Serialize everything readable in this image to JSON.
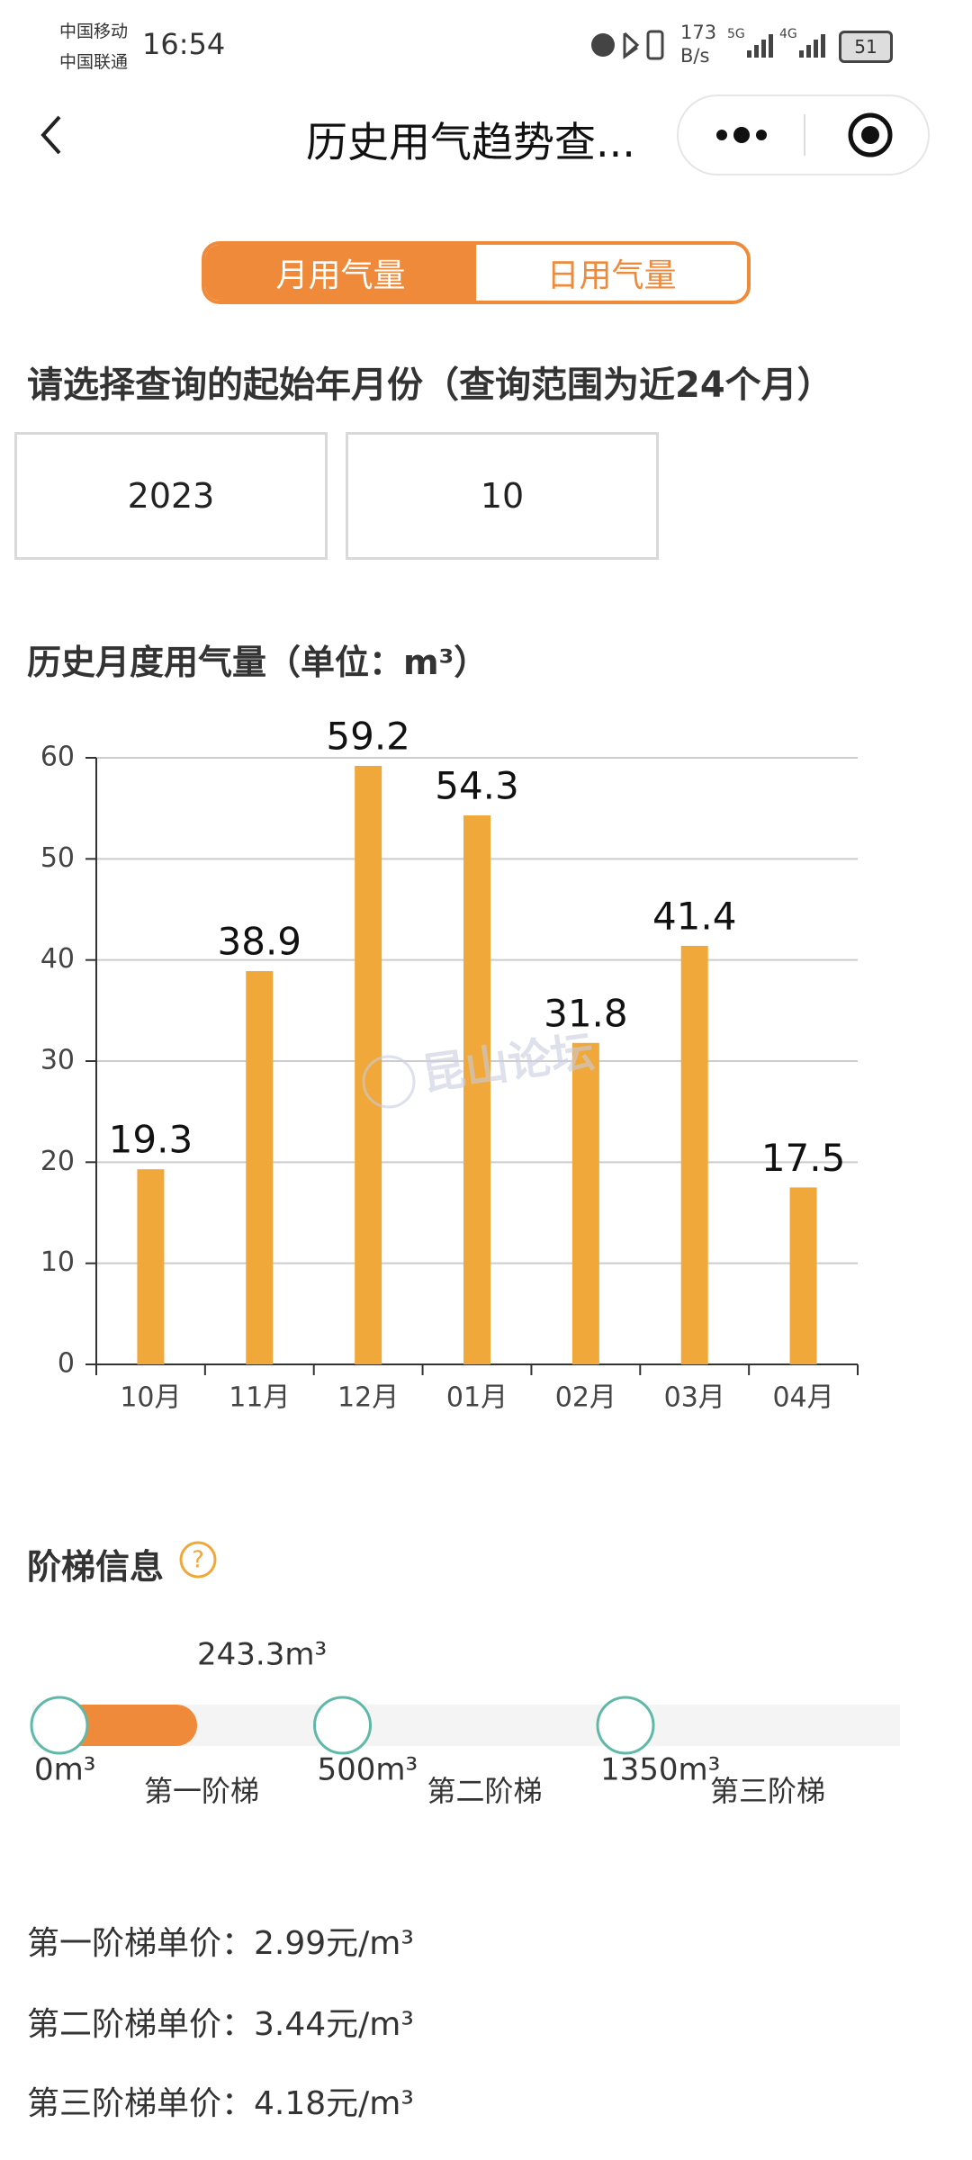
{
  "status_bar": {
    "carrier1": "中国移动",
    "carrier2": "中国联通",
    "time": "16:54",
    "speed": "173",
    "speed_unit": "B/s",
    "signal1": "5G",
    "signal2": "4G",
    "battery": "51"
  },
  "header": {
    "title": "历史用气趋势查..."
  },
  "tabs": [
    "月用气量",
    "日用气量"
  ],
  "query": {
    "label": "请选择查询的起始年月份（查询范围为近24个月）",
    "year": "2023",
    "month": "10"
  },
  "chart_data": {
    "type": "bar",
    "title": "历史月度用气量（单位：m³）",
    "categories": [
      "10月",
      "11月",
      "12月",
      "01月",
      "02月",
      "03月",
      "04月"
    ],
    "values": [
      19.3,
      38.9,
      59.2,
      54.3,
      31.8,
      41.4,
      17.5
    ],
    "color": "#f0a83a",
    "ylim": [
      0,
      60
    ],
    "yticks": [
      0,
      10,
      20,
      30,
      40,
      50,
      60
    ],
    "grid": true
  },
  "watermark": "昆山论坛",
  "tiers": {
    "title": "阶梯信息",
    "usage": {
      "value": 243.3,
      "label": "243.3m³"
    },
    "thresholds": [
      {
        "value": 0,
        "label": "0m³"
      },
      {
        "value": 500,
        "label": "500m³"
      },
      {
        "value": 1350,
        "label": "1350m³"
      }
    ],
    "names": [
      "第一阶梯",
      "第二阶梯",
      "第三阶梯"
    ],
    "prices": [
      "第一阶梯单价：2.99元/m³",
      "第二阶梯单价：3.44元/m³",
      "第三阶梯单价：4.18元/m³"
    ]
  }
}
